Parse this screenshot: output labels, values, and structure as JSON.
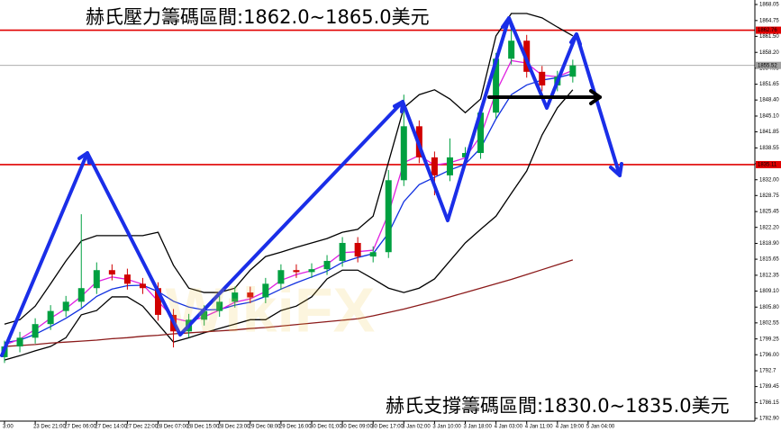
{
  "chart_data": {
    "type": "candlestick",
    "annotations": [
      "赫氏壓力籌碼區間:1862.0~1865.0美元",
      "赫氏支撐籌碼區間:1830.0~1835.0美元"
    ],
    "watermark": "WikiFX",
    "categories": [
      "3:00",
      null,
      "23 Dec 21:00",
      null,
      "27 Dec 06:00",
      null,
      "27 Dec 14:00",
      null,
      "27 Dec 22:00",
      null,
      "28 Dec 07:00",
      null,
      "28 Dec 15:00",
      null,
      "28 Dec 23:00",
      null,
      "29 Dec 08:00",
      null,
      "29 Dec 16:00",
      null,
      "30 Dec 01:00",
      null,
      "30 Dec 09:00",
      null,
      "30 Dec 17:00",
      null,
      "3 Jan 02:00",
      null,
      "3 Jan 10:00",
      null,
      "3 Jan 18:00",
      null,
      "4 Jan 03:00",
      null,
      "4 Jan 11:00",
      null,
      "4 Jan 19:00",
      null,
      "5 Jan 04:00",
      null
    ],
    "open": [
      1795.5,
      1797.7,
      1799.5,
      1802.3,
      1805.0,
      1806.9,
      1809.7,
      1813.4,
      1812.5,
      1810.6,
      1809.7,
      1804.2,
      1800.8,
      1803.2,
      1805.0,
      1806.9,
      1808.8,
      1807.8,
      1810.6,
      1813.4,
      1813.0,
      1813.6,
      1815.3,
      1819.0,
      1816.2,
      1817.1,
      1831.9,
      1843.0,
      1836.6,
      1832.9,
      1836.6,
      1837.5,
      1845.8,
      1856.9,
      1860.6,
      1854.2,
      1851.4,
      1853.2,
      null,
      null
    ],
    "high": [
      1798.9,
      1800.7,
      1803.5,
      1806.2,
      1808.1,
      1824.9,
      1815.0,
      1814.6,
      1813.7,
      1811.8,
      1810.9,
      1805.4,
      1804.4,
      1806.2,
      1808.1,
      1810.0,
      1810.0,
      1811.8,
      1814.6,
      1814.6,
      1814.8,
      1816.5,
      1820.2,
      1820.2,
      1818.3,
      1834.0,
      1849.5,
      1844.2,
      1837.8,
      1840.5,
      1838.7,
      1847.0,
      1858.1,
      1864.8,
      1861.8,
      1855.4,
      1854.4,
      1856.7,
      null,
      null
    ],
    "low": [
      1794.3,
      1796.5,
      1798.3,
      1801.1,
      1803.8,
      1805.7,
      1808.5,
      1811.3,
      1809.4,
      1808.5,
      1803.0,
      1797.5,
      1799.6,
      1802.0,
      1803.8,
      1805.7,
      1806.6,
      1806.6,
      1809.4,
      1811.8,
      1811.8,
      1812.4,
      1814.1,
      1815.0,
      1815.0,
      1815.9,
      1830.7,
      1835.4,
      1828.8,
      1831.7,
      1835.4,
      1836.3,
      1844.6,
      1855.7,
      1853.0,
      1850.2,
      1850.2,
      1852.0,
      null,
      null
    ],
    "close": [
      1797.7,
      1799.5,
      1802.3,
      1805.0,
      1806.9,
      1809.7,
      1813.4,
      1812.5,
      1810.6,
      1809.7,
      1804.2,
      1800.8,
      1803.2,
      1805.0,
      1806.9,
      1808.8,
      1807.8,
      1810.6,
      1813.4,
      1813.0,
      1813.6,
      1815.3,
      1819.0,
      1816.2,
      1817.1,
      1831.9,
      1843.0,
      1836.6,
      1832.9,
      1836.6,
      1837.5,
      1845.8,
      1856.9,
      1860.6,
      1854.2,
      1851.4,
      1853.2,
      1855.5,
      null,
      null
    ],
    "up_color": "#00a040",
    "down_color": "#d00000",
    "overlays": [
      {
        "color": "#000000",
        "values": [
          1802.3,
          1803.2,
          1806.0,
          1810.6,
          1815.3,
          1819.4,
          1820.5,
          1820.5,
          1820.5,
          1820.5,
          1821.2,
          1814.4,
          1809.7,
          1808.8,
          1808.8,
          1809.7,
          1813.4,
          1816.2,
          1817.1,
          1818.1,
          1819.0,
          1819.9,
          1821.2,
          1821.8,
          1824.5,
          1835.6,
          1846.8,
          1849.5,
          1850.5,
          1848.6,
          1845.8,
          1848.6,
          1861.6,
          1866.2,
          1866.2,
          1865.3,
          1863.4,
          1861.6,
          null,
          null
        ]
      },
      {
        "color": "#000000",
        "values": [
          1794.9,
          1795.8,
          1796.8,
          1797.7,
          1799.5,
          1804.2,
          1805.1,
          1807.9,
          1807.9,
          1806.0,
          1802.3,
          1798.6,
          1799.5,
          1800.5,
          1801.4,
          1802.3,
          1803.2,
          1803.2,
          1805.1,
          1806.0,
          1807.9,
          1811.6,
          1813.4,
          1813.4,
          1811.6,
          1809.7,
          1808.8,
          1809.7,
          1811.6,
          1815.3,
          1819.0,
          1821.8,
          1824.5,
          1829.2,
          1833.8,
          1841.2,
          1846.8,
          1850.5,
          null,
          null
        ]
      },
      {
        "color": "#1030e0",
        "values": [
          1798.5,
          1799.0,
          1800.2,
          1801.8,
          1803.5,
          1805.5,
          1808.0,
          1809.5,
          1810.2,
          1810.3,
          1809.0,
          1807.0,
          1805.8,
          1805.2,
          1805.3,
          1806.2,
          1806.8,
          1808.0,
          1809.5,
          1810.8,
          1812.0,
          1813.2,
          1815.0,
          1816.0,
          1816.8,
          1821.0,
          1827.5,
          1831.0,
          1832.5,
          1834.0,
          1835.2,
          1838.5,
          1844.5,
          1849.5,
          1851.5,
          1852.5,
          1853.0,
          1853.8,
          null,
          null
        ]
      },
      {
        "color": "#e020e0",
        "values": [
          1798.0,
          1799.2,
          1801.2,
          1803.5,
          1805.5,
          1808.0,
          1811.0,
          1812.0,
          1811.5,
          1810.5,
          1807.0,
          1803.5,
          1802.8,
          1803.8,
          1805.2,
          1806.8,
          1807.5,
          1809.0,
          1811.3,
          1812.5,
          1813.3,
          1814.6,
          1817.0,
          1817.2,
          1817.5,
          1825.0,
          1835.5,
          1837.0,
          1835.0,
          1835.5,
          1836.5,
          1841.0,
          1850.0,
          1856.5,
          1856.0,
          1853.5,
          1853.2,
          1854.5,
          null,
          null
        ]
      },
      {
        "color": "#8b1a1a",
        "values": [
          1797.7,
          1797.9,
          1798.1,
          1798.4,
          1798.6,
          1798.8,
          1799.0,
          1799.3,
          1799.5,
          1799.8,
          1800.0,
          1800.3,
          1800.5,
          1800.7,
          1800.9,
          1801.1,
          1801.4,
          1801.6,
          1801.9,
          1802.2,
          1802.5,
          1802.8,
          1803.1,
          1803.4,
          1804.0,
          1804.7,
          1805.4,
          1806.2,
          1807.0,
          1807.9,
          1808.8,
          1809.7,
          1810.6,
          1811.5,
          1812.5,
          1813.5,
          1814.5,
          1815.5,
          null,
          null
        ]
      }
    ],
    "reference_lines": [
      {
        "value": 1862.76,
        "color": "#e00000"
      },
      {
        "value": 1835.11,
        "color": "#e00000"
      },
      {
        "value": 1855.52,
        "color": "#a0a0a0"
      }
    ],
    "ylim": [
      1782.9,
      1868.05
    ],
    "yticks": [
      {
        "value": 1782.9,
        "label": "1782.90"
      },
      1786.15,
      1789.45,
      1792.7,
      {
        "value": 1796,
        "label": "1796.00"
      },
      1799.25,
      1802.55,
      {
        "value": 1805.8,
        "label": "1805.80"
      },
      {
        "value": 1809.1,
        "label": "1809.10"
      },
      1812.35,
      1815.65,
      {
        "value": 1818.9,
        "label": "1818.90"
      },
      {
        "value": 1822.2,
        "label": "1822.20"
      },
      1825.45,
      1828.75,
      {
        "value": 1832,
        "label": "1832.00"
      },
      {
        "value": 1835.3,
        "label": "1835.30"
      },
      1838.55,
      1841.85,
      {
        "value": 1845.1,
        "label": "1845.10"
      },
      {
        "value": 1848.4,
        "label": "1848.40"
      },
      1851.65,
      1854.95,
      {
        "value": 1858.2,
        "label": "1858.20"
      },
      {
        "value": 1861.5,
        "label": "1861.50"
      },
      1864.75,
      1868.05
    ]
  }
}
